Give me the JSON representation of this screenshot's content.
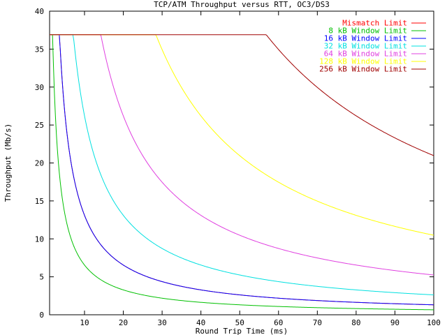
{
  "chart_data": {
    "type": "line",
    "title": "TCP/ATM Throughput versus RTT, OC3/DS3",
    "xlabel": "Round Trip Time (ms)",
    "ylabel": "Throughput (Mb/s)",
    "xlim": [
      1,
      100
    ],
    "ylim": [
      0,
      40
    ],
    "x_ticks": [
      10,
      20,
      30,
      40,
      50,
      60,
      70,
      80,
      90,
      100
    ],
    "y_ticks": [
      0,
      5,
      10,
      15,
      20,
      25,
      30,
      35,
      40
    ],
    "grid": false,
    "legend_position": "top-right",
    "cap_mbps": 36.9,
    "series": [
      {
        "name": "Mismatch Limit",
        "color": "#ff0000",
        "coef": 131
      },
      {
        "name": "8 kB Window Limit",
        "color": "#00c000",
        "coef": 65.5
      },
      {
        "name": "16 kB Window Limit",
        "color": "#0000ff",
        "coef": 131
      },
      {
        "name": "32 kB Window Limit",
        "color": "#00e0e0",
        "coef": 262
      },
      {
        "name": "64 kB Window Limit",
        "color": "#e040e0",
        "coef": 524
      },
      {
        "name": "128 kB Window Limit",
        "color": "#ffff00",
        "coef": 1048
      },
      {
        "name": "256 kB Window Limit",
        "color": "#a00000",
        "coef": 2097
      }
    ]
  }
}
